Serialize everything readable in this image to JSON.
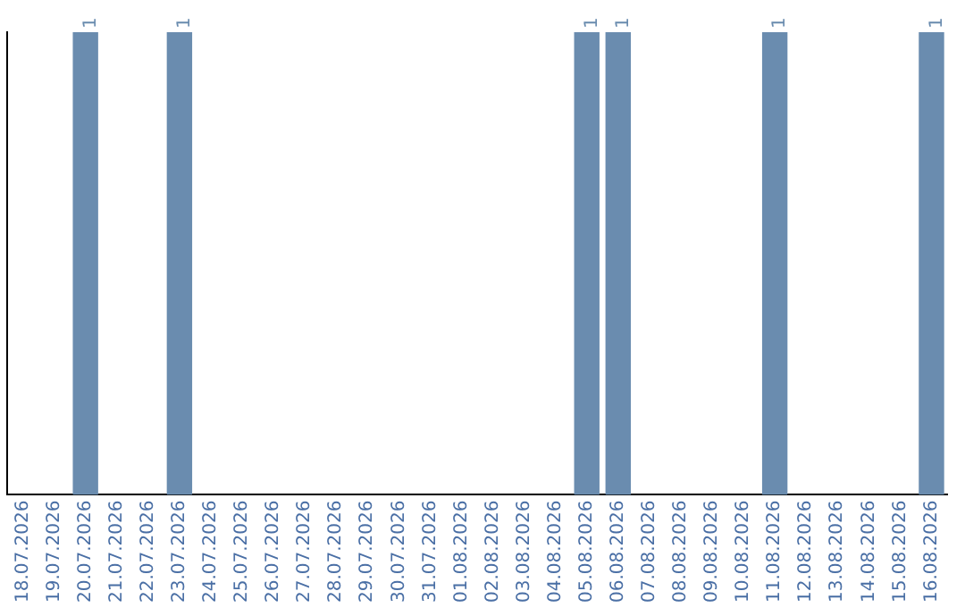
{
  "chart_data": {
    "type": "bar",
    "categories": [
      "18.07.2026",
      "19.07.2026",
      "20.07.2026",
      "21.07.2026",
      "22.07.2026",
      "23.07.2026",
      "24.07.2026",
      "25.07.2026",
      "26.07.2026",
      "27.07.2026",
      "28.07.2026",
      "29.07.2026",
      "30.07.2026",
      "31.07.2026",
      "01.08.2026",
      "02.08.2026",
      "03.08.2026",
      "04.08.2026",
      "05.08.2026",
      "06.08.2026",
      "07.08.2026",
      "08.08.2026",
      "09.08.2026",
      "10.08.2026",
      "11.08.2026",
      "12.08.2026",
      "13.08.2026",
      "14.08.2026",
      "15.08.2026",
      "16.08.2026"
    ],
    "values": [
      0,
      0,
      1,
      0,
      0,
      1,
      0,
      0,
      0,
      0,
      0,
      0,
      0,
      0,
      0,
      0,
      0,
      0,
      1,
      1,
      0,
      0,
      0,
      0,
      1,
      0,
      0,
      0,
      0,
      1
    ],
    "value_labels": [
      null,
      null,
      "1",
      null,
      null,
      "1",
      null,
      null,
      null,
      null,
      null,
      null,
      null,
      null,
      null,
      null,
      null,
      null,
      "1",
      "1",
      null,
      null,
      null,
      null,
      "1",
      null,
      null,
      null,
      null,
      "1"
    ],
    "color": "#6a8caf",
    "grid": false,
    "legend": false,
    "tick_labels": "x"
  }
}
